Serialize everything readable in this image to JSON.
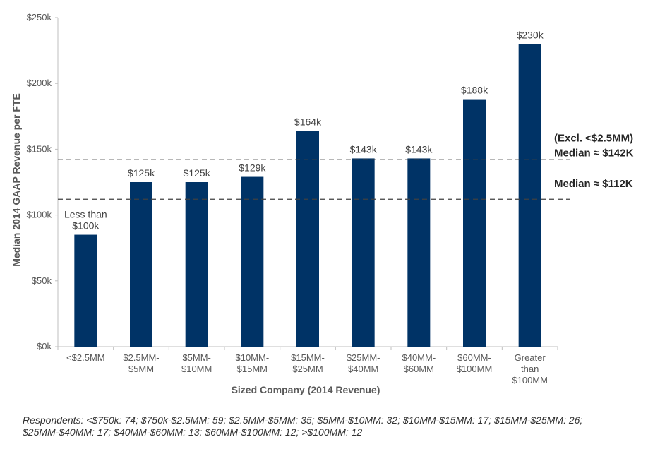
{
  "chart_data": {
    "type": "bar",
    "categories": [
      [
        "<$2.5MM"
      ],
      [
        "$2.5MM-",
        "$5MM"
      ],
      [
        "$5MM-",
        "$10MM"
      ],
      [
        "$10MM-",
        "$15MM"
      ],
      [
        "$15MM-",
        "$25MM"
      ],
      [
        "$25MM-",
        "$40MM"
      ],
      [
        "$40MM-",
        "$60MM"
      ],
      [
        "$60MM-",
        "$100MM"
      ],
      [
        "Greater",
        "than",
        "$100MM"
      ]
    ],
    "values": [
      85,
      125,
      125,
      129,
      164,
      143,
      143,
      188,
      230
    ],
    "data_labels": [
      [
        "Less than",
        "$100k"
      ],
      [
        "$125k"
      ],
      [
        "$125k"
      ],
      [
        "$129k"
      ],
      [
        "$164k"
      ],
      [
        "$143k"
      ],
      [
        "$143k"
      ],
      [
        "$188k"
      ],
      [
        "$230k"
      ]
    ],
    "ylim": [
      0,
      250
    ],
    "yticks": [
      0,
      50,
      100,
      150,
      200,
      250
    ],
    "ytick_labels": [
      "$0k",
      "$50k",
      "$100k",
      "$150k",
      "$200k",
      "$250k"
    ],
    "xlabel": "Sized Company (2014 Revenue)",
    "ylabel": "Median 2014 GAAP Revenue per FTE",
    "bar_color": "#003366",
    "reference_lines": [
      {
        "value": 142,
        "label": [
          "(Excl. <$2.5MM)",
          "Median ≈ $142K"
        ]
      },
      {
        "value": 112,
        "label": [
          "Median ≈ $112K"
        ]
      }
    ],
    "grid": false,
    "legend": "none"
  },
  "footnote": "Respondents: <$750k: 74; $750k-$2.5MM: 59; $2.5MM-$5MM: 35; $5MM-$10MM: 32; $10MM-$15MM: 17; $15MM-$25MM: 26; $25MM-$40MM: 17; $40MM-$60MM: 13; $60MM-$100MM: 12; >$100MM: 12"
}
